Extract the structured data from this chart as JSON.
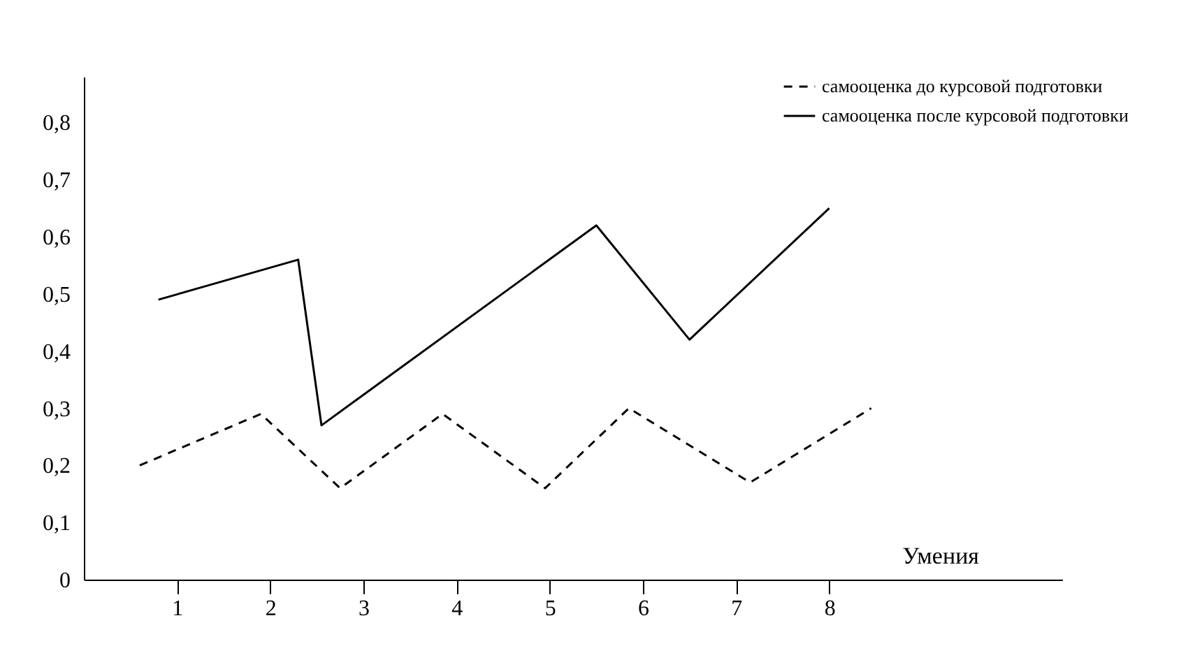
{
  "chart_data": {
    "type": "line",
    "xlabel": "Умения",
    "legend": "top right",
    "grid": false,
    "xlim": [
      0,
      10.5
    ],
    "xticks": [
      1,
      2,
      3,
      4,
      5,
      6,
      7,
      8
    ],
    "ylim": [
      0,
      0.88
    ],
    "yticks": [
      {
        "value": 0,
        "label": "0"
      },
      {
        "value": 0.1,
        "label": "0,1"
      },
      {
        "value": 0.2,
        "label": "0,2"
      },
      {
        "value": 0.3,
        "label": "0,3"
      },
      {
        "value": 0.4,
        "label": "0,4"
      },
      {
        "value": 0.5,
        "label": "0,5"
      },
      {
        "value": 0.6,
        "label": "0,6"
      },
      {
        "value": 0.7,
        "label": "0,7"
      },
      {
        "value": 0.8,
        "label": "0,8"
      }
    ],
    "series": [
      {
        "name": "самооценка до курсовой подготовки",
        "color": "#000000",
        "line_style": "dashed",
        "x": [
          0.6,
          1.9,
          2.75,
          3.85,
          4.95,
          5.85,
          7.15,
          8.45
        ],
        "values": [
          0.2,
          0.29,
          0.16,
          0.29,
          0.16,
          0.3,
          0.17,
          0.3
        ]
      },
      {
        "name": "самооценка после курсовой подготовки",
        "color": "#000000",
        "line_style": "solid",
        "x": [
          0.8,
          2.3,
          2.55,
          5.5,
          6.5,
          8.0
        ],
        "values": [
          0.49,
          0.56,
          0.27,
          0.62,
          0.42,
          0.65
        ]
      }
    ]
  }
}
